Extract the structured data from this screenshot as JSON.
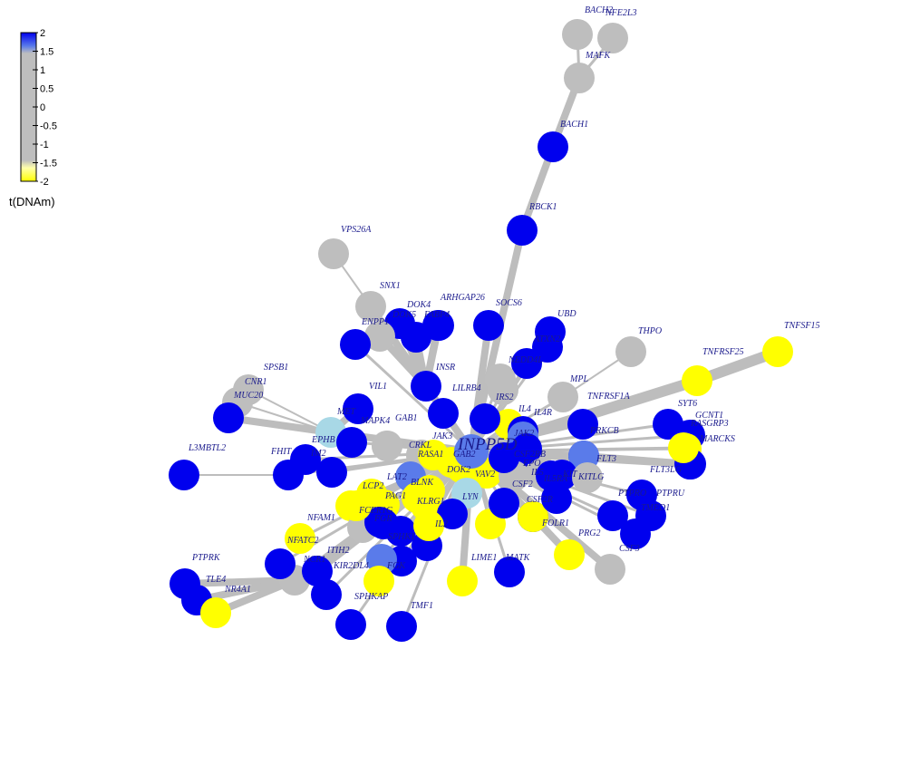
{
  "legend": {
    "title": "t(DNAm)",
    "ticks": [
      "2",
      "1.5",
      "1",
      "0.5",
      "0",
      "-0.5",
      "-1",
      "-1.5",
      "-2"
    ]
  },
  "colors": {
    "high": "#0000ee",
    "mid_high": "#5a7bea",
    "light_blue": "#a8d8e6",
    "neutral": "#bebebe",
    "low": "#ffff00",
    "edge": "#bdbdbd",
    "label": "#1a1a8c"
  },
  "nodes": [
    {
      "id": "INPP5D",
      "label": "INPP5D",
      "color": "mid_high",
      "hub": true
    },
    {
      "id": "BACH2",
      "label": "BACH2",
      "color": "neutral"
    },
    {
      "id": "NFE2L3",
      "label": "NFE2L3",
      "color": "neutral"
    },
    {
      "id": "MAFK",
      "label": "MAFK",
      "color": "neutral"
    },
    {
      "id": "BACH1",
      "label": "BACH1",
      "color": "high"
    },
    {
      "id": "RBCK1",
      "label": "RBCK1",
      "color": "high"
    },
    {
      "id": "VPS26A",
      "label": "VPS26A",
      "color": "neutral"
    },
    {
      "id": "SNX1",
      "label": "SNX1",
      "color": "neutral"
    },
    {
      "id": "ARHGAP26",
      "label": "ARHGAP26",
      "color": "high"
    },
    {
      "id": "SOCS6",
      "label": "SOCS6",
      "color": "high"
    },
    {
      "id": "DOK4",
      "label": "DOK4",
      "color": "high"
    },
    {
      "id": "DOK5",
      "label": "DOK5",
      "color": "high"
    },
    {
      "id": "FABP4",
      "label": "FABP4",
      "color": "high"
    },
    {
      "id": "ENPP1",
      "label": "ENPP1",
      "color": "neutral"
    },
    {
      "id": "UBD",
      "label": "UBD",
      "color": "high"
    },
    {
      "id": "ATXN2",
      "label": "ATXN2",
      "color": "high"
    },
    {
      "id": "NEDD4L",
      "label": "NEDD4L",
      "color": "high"
    },
    {
      "id": "THPO",
      "label": "THPO",
      "color": "neutral"
    },
    {
      "id": "TNFSF15",
      "label": "TNFSF15",
      "color": "low"
    },
    {
      "id": "TNFRSF25",
      "label": "TNFRSF25",
      "color": "low"
    },
    {
      "id": "MPL",
      "label": "MPL",
      "color": "neutral"
    },
    {
      "id": "TNFRSF1A",
      "label": "TNFRSF1A",
      "color": "high"
    },
    {
      "id": "INSR",
      "label": "INSR",
      "color": "high"
    },
    {
      "id": "LILRB4",
      "label": "LILRB4",
      "color": "high"
    },
    {
      "id": "IRS2",
      "label": "IRS2",
      "color": "neutral"
    },
    {
      "id": "IL4",
      "label": "IL4",
      "color": "low"
    },
    {
      "id": "IL4R",
      "label": "IL4R",
      "color": "high"
    },
    {
      "id": "SYT6",
      "label": "SYT6",
      "color": "high"
    },
    {
      "id": "GCNT1",
      "label": "GCNT1",
      "color": "high"
    },
    {
      "id": "RASGRP3",
      "label": "RASGRP3",
      "color": "low"
    },
    {
      "id": "MARCKS",
      "label": "MARCKS",
      "color": "high"
    },
    {
      "id": "PRKCB",
      "label": "PRKCB",
      "color": "high"
    },
    {
      "id": "FLT3",
      "label": "FLT3",
      "color": "mid_high"
    },
    {
      "id": "FLT3LG",
      "label": "FLT3LG",
      "color": "high"
    },
    {
      "id": "SPSB1",
      "label": "SPSB1",
      "color": "neutral"
    },
    {
      "id": "CNR1",
      "label": "CNR1",
      "color": "neutral"
    },
    {
      "id": "MUC20",
      "label": "MUC20",
      "color": "high"
    },
    {
      "id": "VIL1",
      "label": "VIL1",
      "color": "high"
    },
    {
      "id": "MET",
      "label": "MET",
      "color": "light_blue"
    },
    {
      "id": "MAPK4",
      "label": "MAPK4",
      "color": "neutral"
    },
    {
      "id": "GAB1",
      "label": "GAB1",
      "color": "neutral"
    },
    {
      "id": "EPHB",
      "label": "EPHB",
      "color": "high"
    },
    {
      "id": "L3MBTL2",
      "label": "L3MBTL2",
      "color": "high"
    },
    {
      "id": "FHIT",
      "label": "FHIT",
      "color": "high"
    },
    {
      "id": "IM2",
      "label": "IM2",
      "color": "high"
    },
    {
      "id": "JAK3",
      "label": "JAK3",
      "color": "neutral"
    },
    {
      "id": "CRKL",
      "label": "CRKL",
      "color": "neutral"
    },
    {
      "id": "RASA1",
      "label": "RASA1",
      "color": "low"
    },
    {
      "id": "GAB2",
      "label": "GAB2",
      "color": "low"
    },
    {
      "id": "DOK2",
      "label": "DOK2",
      "color": "low"
    },
    {
      "id": "JAK2",
      "label": "JAK2",
      "color": "mid_high"
    },
    {
      "id": "CSF2RB",
      "label": "CSF2RB",
      "color": "high"
    },
    {
      "id": "EPO",
      "label": "EPO",
      "color": "high"
    },
    {
      "id": "VAV2",
      "label": "VAV2",
      "color": "low"
    },
    {
      "id": "CSF2",
      "label": "CSF2",
      "color": "neutral"
    },
    {
      "id": "IL5",
      "label": "IL5",
      "color": "neutral"
    },
    {
      "id": "IL5RA",
      "label": "IL5RA",
      "color": "high"
    },
    {
      "id": "KIT",
      "label": "KIT",
      "color": "high"
    },
    {
      "id": "KITLG",
      "label": "KITLG",
      "color": "neutral"
    },
    {
      "id": "LAT2",
      "label": "LAT2",
      "color": "mid_high"
    },
    {
      "id": "BLNK",
      "label": "BLNK",
      "color": "low"
    },
    {
      "id": "LCP2",
      "label": "LCP2",
      "color": "low"
    },
    {
      "id": "PAG1",
      "label": "PAG1",
      "color": "low"
    },
    {
      "id": "KLRG1",
      "label": "KLRG1",
      "color": "low"
    },
    {
      "id": "LYN",
      "label": "LYN",
      "color": "light_blue"
    },
    {
      "id": "FCER1G",
      "label": "FCER1G",
      "color": "low"
    },
    {
      "id": "NFAM1",
      "label": "NFAM1",
      "color": "low"
    },
    {
      "id": "NFATC2",
      "label": "NFATC2",
      "color": "low"
    },
    {
      "id": "ITIH2",
      "label": "ITIH2",
      "color": "neutral"
    },
    {
      "id": "SPHK1",
      "label": "SPHK1",
      "color": "high"
    },
    {
      "id": "IL2",
      "label": "IL2",
      "color": "high"
    },
    {
      "id": "FGR",
      "label": "FGR",
      "color": "high"
    },
    {
      "id": "PTPRK",
      "label": "PTPRK",
      "color": "high"
    },
    {
      "id": "TLE4",
      "label": "TLE4",
      "color": "high"
    },
    {
      "id": "NR4A1",
      "label": "NR4A1",
      "color": "low"
    },
    {
      "id": "NCR1",
      "label": "NCR1",
      "color": "neutral"
    },
    {
      "id": "KIR2DL4",
      "label": "KIR2DL4",
      "color": "high"
    },
    {
      "id": "FGK",
      "label": "FGK",
      "color": "high"
    },
    {
      "id": "SPHKAP",
      "label": "SPHKAP",
      "color": "high"
    },
    {
      "id": "TMF1",
      "label": "TMF1",
      "color": "high"
    },
    {
      "id": "LIME1",
      "label": "LIME1",
      "color": "low"
    },
    {
      "id": "MATK",
      "label": "MATK",
      "color": "high"
    },
    {
      "id": "FOLR1",
      "label": "FOLR1",
      "color": "high"
    },
    {
      "id": "PRG2",
      "label": "PRG2",
      "color": "low"
    },
    {
      "id": "CSF3",
      "label": "CSF3",
      "color": "neutral"
    },
    {
      "id": "PTPRU",
      "label": "PTPRU",
      "color": "high"
    },
    {
      "id": "PTPRO",
      "label": "PTPRO",
      "color": "high"
    },
    {
      "id": "TMED1",
      "label": "TMED1",
      "color": "high"
    },
    {
      "id": "CSF2R",
      "label": "CSF2R",
      "color": "low"
    },
    {
      "id": "CD4",
      "label": "",
      "color": "high"
    },
    {
      "id": "LCK",
      "label": "",
      "color": "high"
    },
    {
      "id": "HCK",
      "label": "",
      "color": "high"
    },
    {
      "id": "SYK",
      "label": "",
      "color": "low"
    },
    {
      "id": "BTK",
      "label": "",
      "color": "high"
    },
    {
      "id": "SHC1",
      "label": "",
      "color": "high"
    },
    {
      "id": "GRB2",
      "label": "",
      "color": "mid_high"
    },
    {
      "id": "PTPN6",
      "label": "",
      "color": "low"
    },
    {
      "id": "CBL",
      "label": "",
      "color": "high"
    },
    {
      "id": "PIK3R1",
      "label": "",
      "color": "high"
    },
    {
      "id": "SOS1",
      "label": "",
      "color": "low"
    },
    {
      "id": "VAV1",
      "label": "",
      "color": "high"
    },
    {
      "id": "PLCG2",
      "label": "",
      "color": "neutral"
    },
    {
      "id": "STAT5",
      "label": "",
      "color": "high"
    },
    {
      "id": "CD22",
      "label": "",
      "color": "high"
    },
    {
      "id": "FES",
      "label": "",
      "color": "low"
    },
    {
      "id": "PTPN11",
      "label": "",
      "color": "high"
    },
    {
      "id": "CRK",
      "label": "",
      "color": "low"
    }
  ],
  "edges": [
    [
      "BACH2",
      "MAFK"
    ],
    [
      "NFE2L3",
      "MAFK"
    ],
    [
      "MAFK",
      "BACH1"
    ],
    [
      "BACH1",
      "RBCK1"
    ],
    [
      "RBCK1",
      "INPP5D"
    ],
    [
      "VPS26A",
      "SNX1"
    ],
    [
      "SNX1",
      "INSR"
    ],
    [
      "ARHGAP26",
      "INSR"
    ],
    [
      "SOCS6",
      "INPP5D"
    ],
    [
      "DOK4",
      "INSR"
    ],
    [
      "DOK5",
      "INSR"
    ],
    [
      "FABP4",
      "INSR"
    ],
    [
      "ENPP1",
      "INSR"
    ],
    [
      "UBD",
      "INPP5D"
    ],
    [
      "ATXN2",
      "INPP5D"
    ],
    [
      "NEDD4L",
      "INPP5D"
    ],
    [
      "THPO",
      "MPL"
    ],
    [
      "MPL",
      "INPP5D"
    ],
    [
      "TNFSF15",
      "TNFRSF25"
    ],
    [
      "TNFRSF25",
      "INPP5D"
    ],
    [
      "TNFRSF1A",
      "INPP5D"
    ],
    [
      "INSR",
      "INPP5D"
    ],
    [
      "LILRB4",
      "INPP5D"
    ],
    [
      "IRS2",
      "INPP5D"
    ],
    [
      "IL4",
      "INPP5D"
    ],
    [
      "IL4R",
      "INPP5D"
    ],
    [
      "SYT6",
      "INPP5D"
    ],
    [
      "GCNT1",
      "INPP5D"
    ],
    [
      "RASGRP3",
      "INPP5D"
    ],
    [
      "MARCKS",
      "INPP5D"
    ],
    [
      "PRKCB",
      "INPP5D"
    ],
    [
      "FLT3",
      "INPP5D"
    ],
    [
      "FLT3LG",
      "FLT3"
    ],
    [
      "SPSB1",
      "MET"
    ],
    [
      "CNR1",
      "MET"
    ],
    [
      "MUC20",
      "MET"
    ],
    [
      "VIL1",
      "MET"
    ],
    [
      "MET",
      "INPP5D"
    ],
    [
      "MAPK4",
      "INPP5D"
    ],
    [
      "GAB1",
      "INPP5D"
    ],
    [
      "EPHB",
      "INPP5D"
    ],
    [
      "L3MBTL2",
      "FHIT"
    ],
    [
      "FHIT",
      "INPP5D"
    ],
    [
      "IM2",
      "INPP5D"
    ],
    [
      "JAK3",
      "INPP5D"
    ],
    [
      "CRKL",
      "INPP5D"
    ],
    [
      "RASA1",
      "INPP5D"
    ],
    [
      "GAB2",
      "INPP5D"
    ],
    [
      "DOK2",
      "INPP5D"
    ],
    [
      "JAK2",
      "INPP5D"
    ],
    [
      "CSF2RB",
      "INPP5D"
    ],
    [
      "EPO",
      "INPP5D"
    ],
    [
      "VAV2",
      "INPP5D"
    ],
    [
      "CSF2",
      "INPP5D"
    ],
    [
      "IL5",
      "INPP5D"
    ],
    [
      "IL5RA",
      "INPP5D"
    ],
    [
      "KIT",
      "INPP5D"
    ],
    [
      "KITLG",
      "KIT"
    ],
    [
      "LAT2",
      "INPP5D"
    ],
    [
      "BLNK",
      "INPP5D"
    ],
    [
      "LCP2",
      "INPP5D"
    ],
    [
      "PAG1",
      "INPP5D"
    ],
    [
      "KLRG1",
      "INPP5D"
    ],
    [
      "LYN",
      "INPP5D"
    ],
    [
      "FCER1G",
      "INPP5D"
    ],
    [
      "NFAM1",
      "INPP5D"
    ],
    [
      "NFATC2",
      "INPP5D"
    ],
    [
      "ITIH2",
      "INPP5D"
    ],
    [
      "SPHK1",
      "INPP5D"
    ],
    [
      "IL2",
      "INPP5D"
    ],
    [
      "FGR",
      "INPP5D"
    ],
    [
      "PTPRK",
      "NCR1"
    ],
    [
      "TLE4",
      "NCR1"
    ],
    [
      "NR4A1",
      "NCR1"
    ],
    [
      "NCR1",
      "INPP5D"
    ],
    [
      "KIR2DL4",
      "INPP5D"
    ],
    [
      "FGK",
      "INPP5D"
    ],
    [
      "SPHKAP",
      "INPP5D"
    ],
    [
      "TMF1",
      "INPP5D"
    ],
    [
      "LIME1",
      "INPP5D"
    ],
    [
      "MATK",
      "INPP5D"
    ],
    [
      "FOLR1",
      "INPP5D"
    ],
    [
      "PRG2",
      "INPP5D"
    ],
    [
      "CSF3",
      "INPP5D"
    ],
    [
      "PTPRU",
      "INPP5D"
    ],
    [
      "PTPRO",
      "INPP5D"
    ],
    [
      "TMED1",
      "INPP5D"
    ],
    [
      "CSF2R",
      "INPP5D"
    ],
    [
      "CD4",
      "INPP5D"
    ],
    [
      "LCK",
      "INPP5D"
    ],
    [
      "HCK",
      "INPP5D"
    ],
    [
      "SYK",
      "INPP5D"
    ],
    [
      "BTK",
      "INPP5D"
    ],
    [
      "SHC1",
      "INPP5D"
    ],
    [
      "GRB2",
      "INPP5D"
    ],
    [
      "PTPN6",
      "INPP5D"
    ],
    [
      "CBL",
      "INPP5D"
    ],
    [
      "PIK3R1",
      "INPP5D"
    ],
    [
      "SOS1",
      "INPP5D"
    ],
    [
      "VAV1",
      "INPP5D"
    ],
    [
      "PLCG2",
      "INPP5D"
    ],
    [
      "STAT5",
      "INPP5D"
    ],
    [
      "CD22",
      "INPP5D"
    ],
    [
      "FES",
      "INPP5D"
    ],
    [
      "PTPN11",
      "INPP5D"
    ],
    [
      "CRK",
      "INPP5D"
    ]
  ]
}
